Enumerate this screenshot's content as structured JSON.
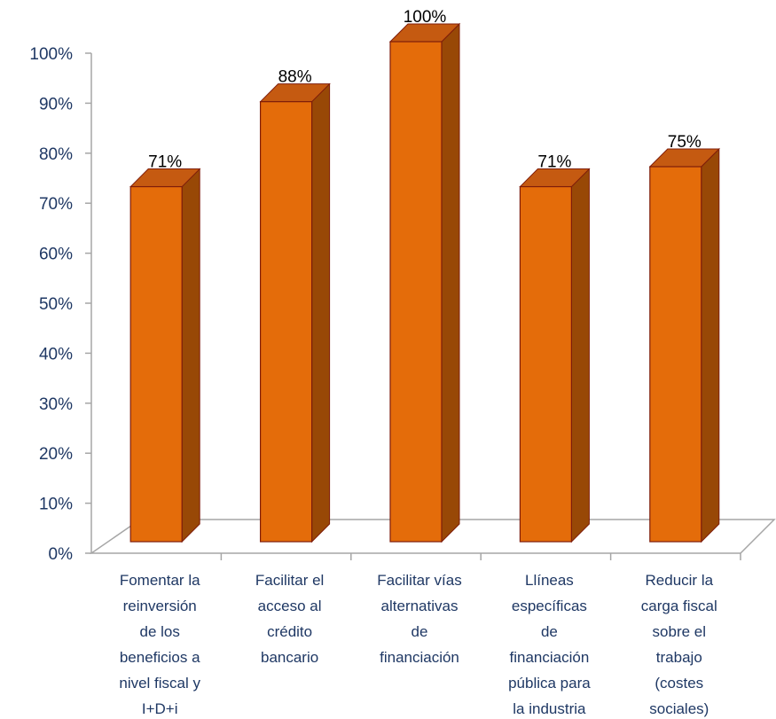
{
  "chart_data": {
    "type": "bar",
    "style": "3d-column",
    "categories": [
      [
        "Fomentar la",
        "reinversión",
        "de los",
        "beneficios a",
        "nivel fiscal y",
        "I+D+i"
      ],
      [
        "Facilitar el",
        "acceso al",
        "crédito",
        "bancario"
      ],
      [
        "Facilitar vías",
        "alternativas",
        "de",
        "financiación"
      ],
      [
        "Llíneas",
        "específicas",
        "de",
        "financiación",
        "pública para",
        "la industria"
      ],
      [
        "Reducir la",
        "carga fiscal",
        "sobre el",
        "trabajo",
        "(costes",
        "sociales)"
      ]
    ],
    "values": [
      71,
      88,
      100,
      71,
      75
    ],
    "data_labels": [
      "71%",
      "88%",
      "100%",
      "71%",
      "75%"
    ],
    "y_ticks": [
      "0%",
      "10%",
      "20%",
      "30%",
      "40%",
      "50%",
      "60%",
      "70%",
      "80%",
      "90%",
      "100%"
    ],
    "ylim": [
      0,
      100
    ],
    "grid": false,
    "legend": "none",
    "colors": {
      "bar_front": "#e46c0a",
      "bar_side": "#984806",
      "bar_top": "#c55a11",
      "bar_edge": "#7f1d0a",
      "axis": "#a6a6a6",
      "tick_text": "#1f3864",
      "label_text": "#000000"
    }
  }
}
